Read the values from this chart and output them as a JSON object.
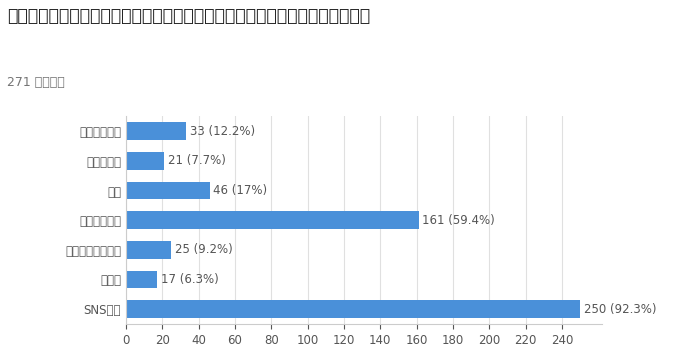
{
  "title": "次のうち、スマホで入力（記録）するものを教えてください。（複数回答可）",
  "subtitle": "271 件の回答",
  "categories": [
    "SNS投稿",
    "履歴書",
    "エントリーシート",
    "スケジュール",
    "日記",
    "議義ノート",
    "課題レポート"
  ],
  "values": [
    250,
    17,
    25,
    161,
    46,
    21,
    33
  ],
  "labels": [
    "250 (92.3%)",
    "17 (6.3%)",
    "25 (9.2%)",
    "161 (59.4%)",
    "46 (17%)",
    "21 (7.7%)",
    "33 (12.2%)"
  ],
  "bar_color": "#4a90d9",
  "background_color": "#ffffff",
  "title_color": "#212121",
  "subtitle_color": "#757575",
  "xlim": [
    0,
    262
  ],
  "xticks": [
    0,
    20,
    40,
    60,
    80,
    100,
    120,
    140,
    160,
    180,
    200,
    220,
    240
  ],
  "title_fontsize": 12.5,
  "subtitle_fontsize": 9,
  "label_fontsize": 8.5,
  "tick_fontsize": 8.5,
  "bar_height": 0.6
}
